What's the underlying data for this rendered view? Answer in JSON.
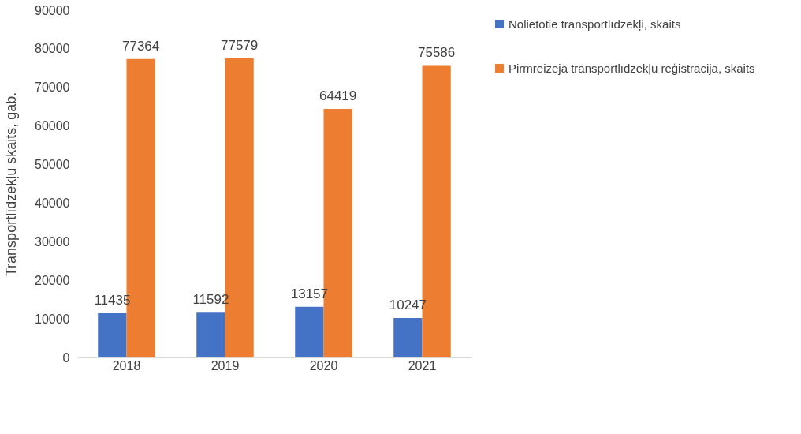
{
  "chart_data": {
    "type": "bar",
    "ylabel": "Transportlīdzekļu skaits, gab.",
    "categories": [
      "2018",
      "2019",
      "2020",
      "2021"
    ],
    "series": [
      {
        "name": "Nolietotie transportlīdzekļi, skaits",
        "color": "#4472c4",
        "values": [
          11435,
          11592,
          13157,
          10247
        ]
      },
      {
        "name": "Pirmreizējā transportlīdzekļu reģistrācija, skaits",
        "color": "#ed7d31",
        "values": [
          77364,
          77579,
          64419,
          75586
        ]
      }
    ],
    "ylim": [
      0,
      90000
    ],
    "yticks": [
      0,
      10000,
      20000,
      30000,
      40000,
      50000,
      60000,
      70000,
      80000,
      90000
    ],
    "grid": false,
    "legend": "right",
    "data_labels": true
  }
}
